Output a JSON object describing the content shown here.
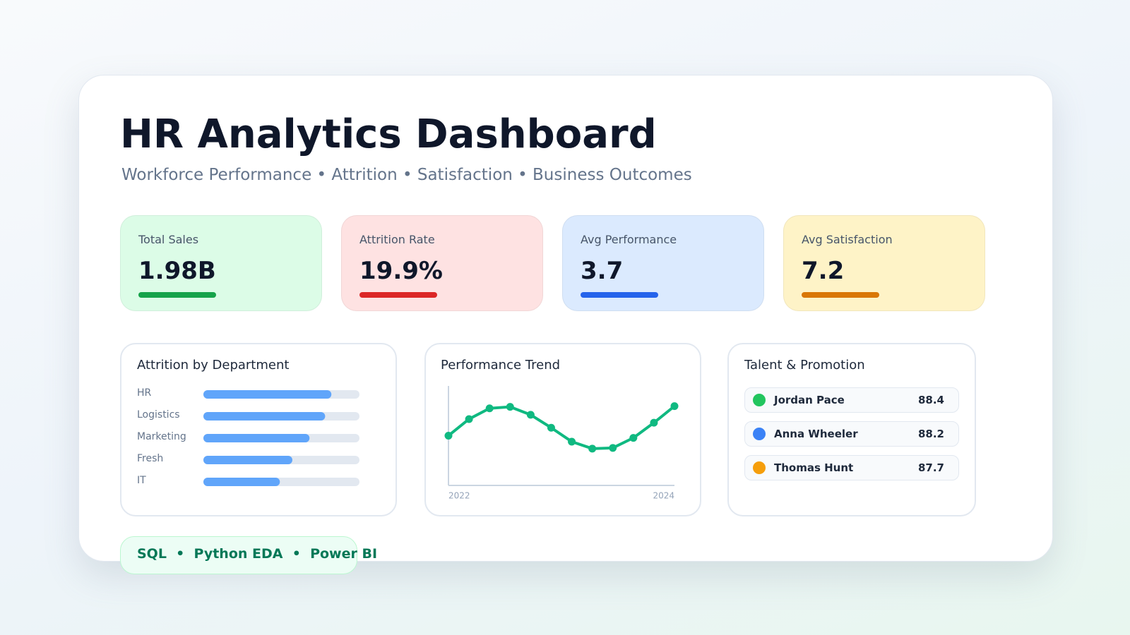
{
  "header": {
    "title": "HR Analytics Dashboard",
    "subtitle": "Workforce Performance • Attrition • Satisfaction • Business Outcomes"
  },
  "kpis": [
    {
      "label": "Total Sales",
      "value": "1.98B",
      "color": "#16a34a",
      "background": "#dcfce7"
    },
    {
      "label": "Attrition Rate",
      "value": "19.9%",
      "color": "#dc2626",
      "background": "#fee2e2"
    },
    {
      "label": "Avg Performance",
      "value": "3.7",
      "color": "#2563eb",
      "background": "#dbeafe"
    },
    {
      "label": "Avg Satisfaction",
      "value": "7.2",
      "color": "#d97706",
      "background": "#fef3c7"
    }
  ],
  "attrition_chart": {
    "type": "bar",
    "title": "Attrition by Department",
    "categories": [
      "HR",
      "Logistics",
      "Marketing",
      "Fresh",
      "IT"
    ],
    "values": [
      82,
      78,
      68,
      57,
      49
    ],
    "xlim": [
      0,
      100
    ],
    "color": "#60a5fa"
  },
  "trend_chart": {
    "type": "line",
    "title": "Performance Trend",
    "categories": [
      "2022",
      null,
      null,
      null,
      null,
      null,
      null,
      null,
      null,
      null,
      null,
      "2024"
    ],
    "values": [
      50,
      66.7,
      77.5,
      79,
      71,
      58,
      44,
      37,
      37.7,
      47.8,
      63,
      79.7
    ],
    "ylim": [
      0,
      100
    ],
    "color": "#10b981"
  },
  "talent": {
    "title": "Talent & Promotion",
    "rows": [
      {
        "name": "Jordan Pace",
        "score": "88.4",
        "color": "#22c55e"
      },
      {
        "name": "Anna Wheeler",
        "score": "88.2",
        "color": "#3b82f6"
      },
      {
        "name": "Thomas Hunt",
        "score": "87.7",
        "color": "#f59e0b"
      }
    ]
  },
  "footer": {
    "tools": "SQL  •  Python EDA  •  Power BI"
  }
}
